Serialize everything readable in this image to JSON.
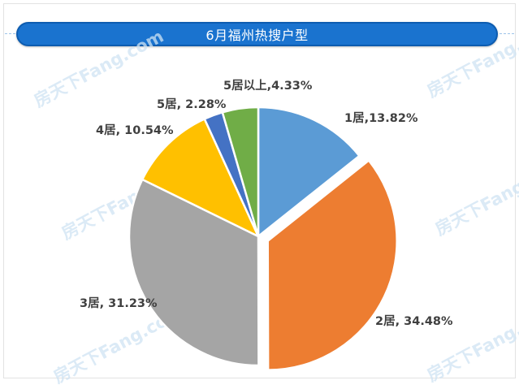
{
  "chart_data": {
    "type": "pie",
    "title": "6月福州热搜户型",
    "slices": [
      {
        "label": "1居",
        "value": 13.82,
        "label_text": "1居,13.82%",
        "color": "#5b9bd5",
        "exploded": false
      },
      {
        "label": "2居",
        "value": 34.48,
        "label_text": "2居, 34.48%",
        "color": "#ed7d31",
        "exploded": true
      },
      {
        "label": "3居",
        "value": 31.23,
        "label_text": "3居, 31.23%",
        "color": "#a5a5a5",
        "exploded": false
      },
      {
        "label": "4居",
        "value": 10.54,
        "label_text": "4居, 10.54%",
        "color": "#ffc000",
        "exploded": false
      },
      {
        "label": "5居",
        "value": 2.28,
        "label_text": "5居, 2.28%",
        "color": "#4472c4",
        "exploded": false
      },
      {
        "label": "5居以上",
        "value": 4.33,
        "label_text": "5居以上,4.33%",
        "color": "#70ad47",
        "exploded": false
      }
    ]
  },
  "watermark_text": "房天下Fang.com"
}
